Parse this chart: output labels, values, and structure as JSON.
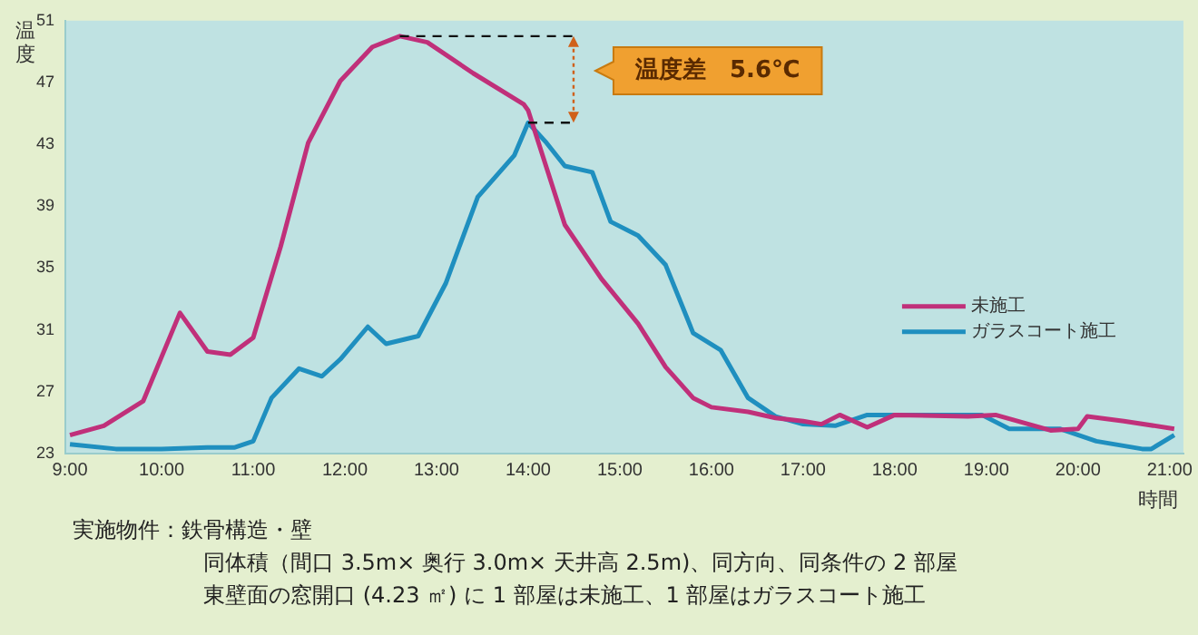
{
  "chart_data": {
    "type": "line",
    "xlabel": "時間",
    "ylabel": "温度",
    "xlim": [
      8.95,
      21.15
    ],
    "xticks": [
      {
        "value": 9,
        "label": "9:00"
      },
      {
        "value": 10,
        "label": "10:00"
      },
      {
        "value": 11,
        "label": "11:00"
      },
      {
        "value": 12,
        "label": "12:00"
      },
      {
        "value": 13,
        "label": "13:00"
      },
      {
        "value": 14,
        "label": "14:00"
      },
      {
        "value": 15,
        "label": "15:00"
      },
      {
        "value": 16,
        "label": "16:00"
      },
      {
        "value": 17,
        "label": "17:00"
      },
      {
        "value": 18,
        "label": "18:00"
      },
      {
        "value": 19,
        "label": "19:00"
      },
      {
        "value": 20,
        "label": "20:00"
      },
      {
        "value": 21,
        "label": "21:00"
      }
    ],
    "ylim": [
      23,
      51
    ],
    "yticks": [
      23,
      27,
      31,
      35,
      39,
      43,
      47,
      51
    ],
    "marker": "none",
    "legend": "right",
    "series": [
      {
        "name": "未施工",
        "color": "#c0307a",
        "x": [
          9.0,
          9.37,
          9.8,
          10.2,
          10.5,
          10.75,
          11.0,
          11.3,
          11.6,
          11.95,
          12.3,
          12.6,
          12.9,
          13.4,
          13.95,
          14.0,
          14.4,
          14.8,
          15.2,
          15.5,
          15.8,
          16.0,
          16.4,
          16.7,
          17.0,
          17.2,
          17.4,
          17.7,
          18.0,
          18.8,
          19.1,
          19.7,
          20.0,
          20.1,
          20.5,
          21.05
        ],
        "values": [
          24.2,
          24.8,
          26.4,
          32.1,
          29.6,
          29.4,
          30.5,
          36.4,
          43.1,
          47.1,
          49.3,
          50.0,
          49.6,
          47.6,
          45.6,
          45.2,
          37.8,
          34.3,
          31.4,
          28.6,
          26.6,
          26.0,
          25.7,
          25.3,
          25.1,
          24.9,
          25.5,
          24.7,
          25.5,
          25.4,
          25.5,
          24.5,
          24.6,
          25.4,
          25.1,
          24.6
        ]
      },
      {
        "name": "ガラスコート施工",
        "color": "#1f8fbf",
        "x": [
          9.0,
          9.5,
          10.0,
          10.5,
          10.8,
          11.0,
          11.2,
          11.5,
          11.75,
          11.95,
          12.25,
          12.45,
          12.8,
          13.1,
          13.45,
          13.85,
          14.0,
          14.2,
          14.4,
          14.7,
          14.9,
          15.2,
          15.5,
          15.8,
          16.1,
          16.4,
          16.7,
          17.0,
          17.35,
          17.7,
          18.25,
          18.95,
          19.25,
          19.8,
          20.2,
          20.7,
          20.8,
          21.05
        ],
        "values": [
          23.6,
          23.3,
          23.3,
          23.4,
          23.4,
          23.8,
          26.6,
          28.5,
          28.0,
          29.1,
          31.2,
          30.1,
          30.6,
          34.0,
          39.6,
          42.3,
          44.4,
          43.1,
          41.6,
          41.2,
          38.0,
          37.1,
          35.2,
          30.8,
          29.7,
          26.6,
          25.4,
          24.9,
          24.8,
          25.5,
          25.5,
          25.5,
          24.6,
          24.6,
          23.8,
          23.3,
          23.3,
          24.2
        ]
      }
    ],
    "annotations": [
      "温度差　5.6℃",
      "実施物件：鉄骨構造・壁",
      "同体積（間口 3.5m× 奥行 3.0m× 天井高 2.5m)、同方向、同条件の 2 部屋",
      "東壁面の窓開口 (4.23 ㎡) に 1 部屋は未施工、1 部屋はガラスコート施工"
    ]
  }
}
